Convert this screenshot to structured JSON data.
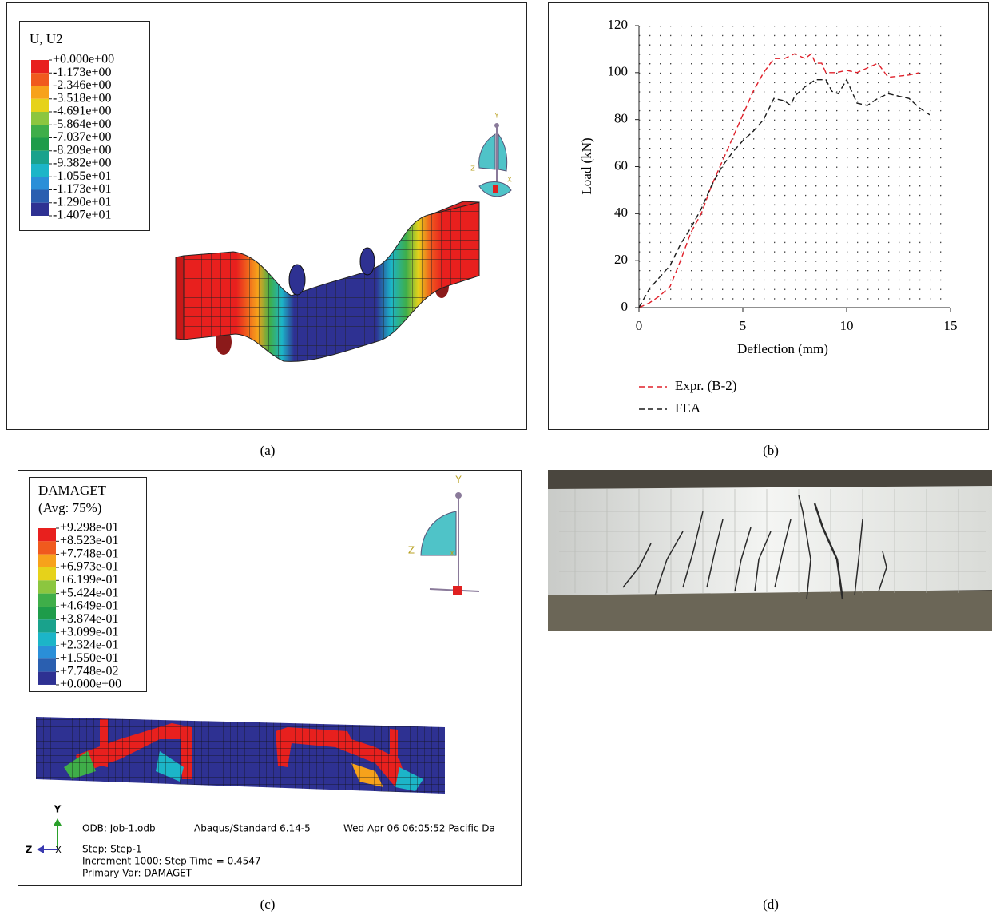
{
  "chart_data": {
    "type": "line",
    "x_label": "Deflection (mm)",
    "y_label": "Load (kN)",
    "xlim": [
      0,
      15
    ],
    "xticks": [
      0,
      5,
      10,
      15
    ],
    "ylim": [
      0,
      120
    ],
    "yticks": [
      0,
      20,
      40,
      60,
      80,
      100,
      120
    ],
    "grid": true,
    "legend": "bottom-left",
    "series": [
      {
        "name": "Expr. (B-2)",
        "color": "#e0202a",
        "x": [
          0,
          0.5,
          1,
          1.5,
          2,
          2.5,
          3,
          3.5,
          4,
          4.5,
          5,
          5.5,
          6,
          6.5,
          7,
          7.5,
          8,
          8.3,
          8.5,
          8.8,
          9,
          9.5,
          10,
          10.5,
          11,
          11.5,
          12,
          13,
          13.5
        ],
        "values": [
          0,
          2,
          5,
          9,
          20,
          32,
          40,
          52,
          62,
          72,
          82,
          92,
          100,
          106,
          106,
          108,
          106,
          108,
          104,
          104,
          100,
          100,
          101,
          100,
          102,
          104,
          98,
          99,
          100
        ]
      },
      {
        "name": "FEA",
        "color": "#1a1a1a",
        "x": [
          0,
          0.5,
          1,
          1.5,
          2,
          2.5,
          3,
          3.5,
          4,
          4.5,
          5,
          5.5,
          6,
          6.5,
          7,
          7.3,
          7.5,
          8,
          8.5,
          9,
          9.3,
          9.6,
          10,
          10.5,
          11,
          11.5,
          12,
          12.5,
          13,
          13.5,
          14
        ],
        "values": [
          0,
          8,
          13,
          18,
          27,
          34,
          42,
          52,
          60,
          66,
          71,
          75,
          80,
          89,
          88,
          86,
          90,
          94,
          97,
          97,
          92,
          91,
          97,
          87,
          86,
          89,
          91,
          90,
          89,
          85,
          82
        ]
      }
    ]
  },
  "panel_a": {
    "label": "(a)",
    "legend_title": "U, U2",
    "legend_labels": [
      "+0.000e+00",
      "-1.173e+00",
      "-2.346e+00",
      "-3.518e+00",
      "-4.691e+00",
      "-5.864e+00",
      "-7.037e+00",
      "-8.209e+00",
      "-9.382e+00",
      "-1.055e+01",
      "-1.173e+01",
      "-1.290e+01",
      "-1.407e+01"
    ],
    "triad_labels": [
      "Y",
      "Z",
      "X"
    ]
  },
  "panel_b": {
    "label": "(b)"
  },
  "panel_c": {
    "label": "(c)",
    "legend_title": "DAMAGET",
    "legend_subtitle": "(Avg: 75%)",
    "legend_labels": [
      "+9.298e-01",
      "+8.523e-01",
      "+7.748e-01",
      "+6.973e-01",
      "+6.199e-01",
      "+5.424e-01",
      "+4.649e-01",
      "+3.874e-01",
      "+3.099e-01",
      "+2.324e-01",
      "+1.550e-01",
      "+7.748e-02",
      "+0.000e+00"
    ],
    "triad_labels": [
      "Y",
      "Z",
      "X"
    ],
    "footer_triad_labels": [
      "Y",
      "Z",
      "X"
    ],
    "info": [
      "ODB: Job-1.odb",
      "Abaqus/Standard 6.14-5",
      "Wed Apr 06 06:05:52 Pacific Da",
      "Step: Step-1",
      "Increment  1000: Step Time =  0.4547",
      "Primary Var: DAMAGET"
    ]
  },
  "panel_d": {
    "label": "(d)"
  }
}
